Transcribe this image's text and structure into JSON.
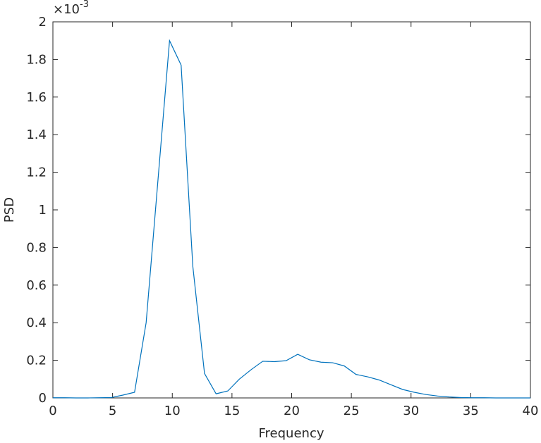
{
  "chart_data": {
    "type": "line",
    "x_label": "Frequency",
    "y_label": "PSD",
    "y_multiplier_base": "×10",
    "y_multiplier_exponent": "-3",
    "xlim": [
      0,
      40
    ],
    "ylim": [
      0,
      2
    ],
    "xticks": [
      0,
      5,
      10,
      15,
      20,
      25,
      30,
      35,
      40
    ],
    "yticks": [
      0,
      0.2,
      0.4,
      0.6,
      0.8,
      1,
      1.2,
      1.4,
      1.6,
      1.8,
      2
    ],
    "grid": false,
    "series": [
      {
        "color": "#0072bd",
        "x": [
          0,
          0.98,
          1.95,
          2.93,
          3.91,
          4.88,
          5.86,
          6.84,
          7.81,
          8.79,
          9.77,
          10.74,
          11.72,
          12.7,
          13.67,
          14.65,
          15.62,
          16.6,
          17.58,
          18.55,
          19.53,
          20.51,
          21.48,
          22.46,
          23.44,
          24.41,
          25.39,
          26.37,
          27.34,
          28.32,
          29.3,
          30.27,
          31.25,
          32.23,
          33.2,
          34.18,
          35.16,
          36.13,
          37.11,
          38.09,
          39.06,
          40
        ],
        "values": [
          0.001,
          0.001,
          0,
          0,
          0.001,
          0.002,
          0.015,
          0.03,
          0.4,
          1.15,
          1.9,
          1.77,
          0.7,
          0.13,
          0.022,
          0.037,
          0.1,
          0.15,
          0.195,
          0.193,
          0.198,
          0.232,
          0.203,
          0.19,
          0.187,
          0.17,
          0.125,
          0.112,
          0.095,
          0.07,
          0.045,
          0.03,
          0.018,
          0.01,
          0.005,
          0.002,
          0.001,
          0.001,
          0,
          0,
          0,
          0
        ]
      }
    ]
  }
}
